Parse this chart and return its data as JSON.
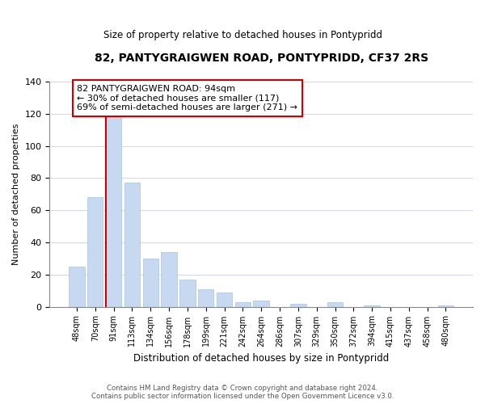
{
  "title": "82, PANTYGRAIGWEN ROAD, PONTYPRIDD, CF37 2RS",
  "subtitle": "Size of property relative to detached houses in Pontypridd",
  "xlabel": "Distribution of detached houses by size in Pontypridd",
  "ylabel": "Number of detached properties",
  "bar_labels": [
    "48sqm",
    "70sqm",
    "91sqm",
    "113sqm",
    "134sqm",
    "156sqm",
    "178sqm",
    "199sqm",
    "221sqm",
    "242sqm",
    "264sqm",
    "286sqm",
    "307sqm",
    "329sqm",
    "350sqm",
    "372sqm",
    "394sqm",
    "415sqm",
    "437sqm",
    "458sqm",
    "480sqm"
  ],
  "bar_values": [
    25,
    68,
    119,
    77,
    30,
    34,
    17,
    11,
    9,
    3,
    4,
    0,
    2,
    0,
    3,
    0,
    1,
    0,
    0,
    0,
    1
  ],
  "bar_color": "#c6d9f0",
  "bar_edge_color": "#a8c4e0",
  "highlight_bar_index": 2,
  "highlight_line_color": "#cc0000",
  "ylim": [
    0,
    140
  ],
  "yticks": [
    0,
    20,
    40,
    60,
    80,
    100,
    120,
    140
  ],
  "annotation_line1": "82 PANTYGRAIGWEN ROAD: 94sqm",
  "annotation_line2": "← 30% of detached houses are smaller (117)",
  "annotation_line3": "69% of semi-detached houses are larger (271) →",
  "annotation_box_color": "#ffffff",
  "annotation_box_edge": "#cc0000",
  "footer_line1": "Contains HM Land Registry data © Crown copyright and database right 2024.",
  "footer_line2": "Contains public sector information licensed under the Open Government Licence v3.0.",
  "bg_color": "#ffffff",
  "grid_color": "#d0d8e8"
}
